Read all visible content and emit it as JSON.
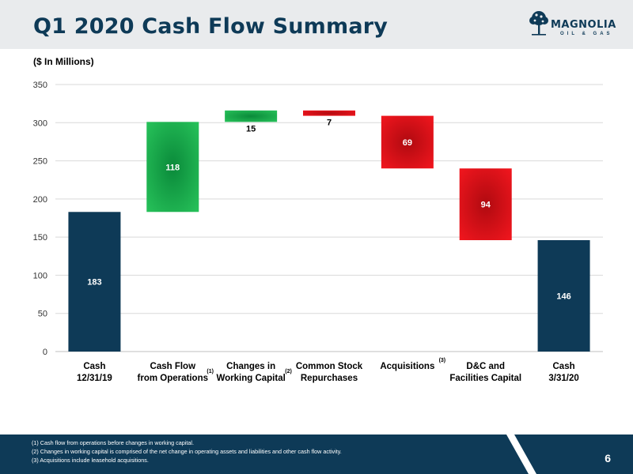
{
  "header": {
    "title": "Q1 2020 Cash Flow Summary",
    "logo_name": "MAGNOLIA",
    "logo_sub": "OIL & GAS",
    "logo_icon": "magnolia-tree-icon"
  },
  "units_label": "($ In Millions)",
  "chart_data": {
    "type": "bar",
    "subtype": "waterfall",
    "categories": [
      {
        "line1": "Cash",
        "line2": "12/31/19",
        "note": ""
      },
      {
        "line1": "Cash Flow",
        "line2": "from Operations",
        "note": "(1)"
      },
      {
        "line1": "Changes in",
        "line2": "Working Capital",
        "note": "(2)"
      },
      {
        "line1": "Common Stock",
        "line2": "Repurchases",
        "note": ""
      },
      {
        "line1": "Acquisitions",
        "line2": "",
        "note": "(3)"
      },
      {
        "line1": "D&C and",
        "line2": "Facilities Capital",
        "note": ""
      },
      {
        "line1": "Cash",
        "line2": "3/31/20",
        "note": ""
      }
    ],
    "bars": [
      {
        "start": 0,
        "end": 183,
        "label": "183",
        "kind": "total"
      },
      {
        "start": 183,
        "end": 301,
        "label": "118",
        "kind": "increase"
      },
      {
        "start": 301,
        "end": 316,
        "label": "15",
        "kind": "increase"
      },
      {
        "start": 316,
        "end": 309,
        "label": "7",
        "kind": "decrease"
      },
      {
        "start": 309,
        "end": 240,
        "label": "69",
        "kind": "decrease"
      },
      {
        "start": 240,
        "end": 146,
        "label": "94",
        "kind": "decrease"
      },
      {
        "start": 0,
        "end": 146,
        "label": "146",
        "kind": "total"
      }
    ],
    "ylim": [
      0,
      350
    ],
    "yticks": [
      0,
      50,
      100,
      150,
      200,
      250,
      300,
      350
    ],
    "grid": true,
    "colors": {
      "total": "#0e3a57",
      "increase": "#1fb14a",
      "decrease": "#e8141b"
    }
  },
  "footer": {
    "notes": [
      "(1)  Cash flow from operations before changes in working capital.",
      "(2)  Changes in working capital is comprised of the net change in operating assets and liabilities and other cash flow activity.",
      "(3)  Acquisitions include leasehold acquisitions."
    ],
    "page_number": "6"
  }
}
